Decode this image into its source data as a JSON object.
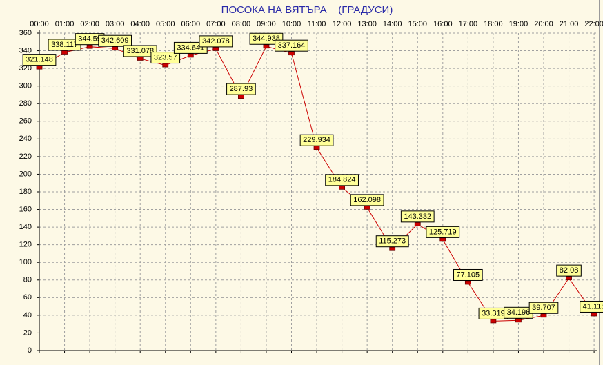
{
  "chart_data": {
    "type": "line",
    "title": "ПОСОКА НА ВЯТЪРА    (ГРАДУСИ)",
    "categories": [
      "00:00",
      "01:00",
      "02:00",
      "03:00",
      "04:00",
      "05:00",
      "06:00",
      "07:00",
      "08:00",
      "09:00",
      "10:00",
      "11:00",
      "12:00",
      "13:00",
      "14:00",
      "15:00",
      "16:00",
      "17:00",
      "18:00",
      "19:00",
      "20:00",
      "21:00",
      "22:00"
    ],
    "values": [
      321.148,
      338.117,
      344.59,
      342.609,
      331.078,
      323.57,
      334.641,
      342.078,
      287.93,
      344.938,
      337.164,
      229.934,
      184.824,
      162.098,
      115.273,
      143.332,
      125.719,
      77.105,
      33.319,
      34.196,
      39.707,
      82.08,
      41.115
    ],
    "color": "#cc0000",
    "ylim": [
      0,
      360
    ],
    "yticks": [
      0,
      20,
      40,
      60,
      80,
      100,
      120,
      140,
      160,
      180,
      200,
      220,
      240,
      260,
      280,
      300,
      320,
      340,
      360
    ],
    "grid": true
  }
}
